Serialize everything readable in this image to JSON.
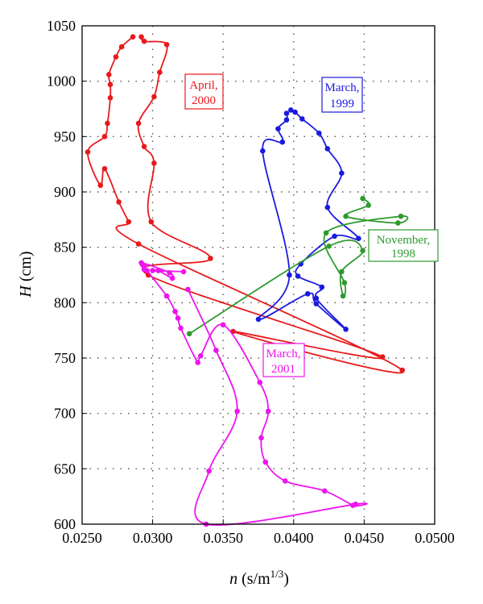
{
  "chart_data": {
    "type": "line",
    "xlabel": {
      "var": "n",
      "unit": "(s/m",
      "sup": "1/3",
      "close": ")"
    },
    "ylabel": {
      "var": "H",
      "unit": " (cm)"
    },
    "xlim": [
      0.025,
      0.05
    ],
    "ylim": [
      600,
      1050
    ],
    "xticks": [
      "0.0250",
      "0.0300",
      "0.0350",
      "0.0400",
      "0.0450",
      "0.0500"
    ],
    "yticks": [
      "600",
      "650",
      "700",
      "750",
      "800",
      "850",
      "900",
      "950",
      "1000",
      "1050"
    ],
    "grid": true,
    "series": [
      {
        "name": "April, 2000",
        "label_lines": [
          "April,",
          "2000"
        ],
        "color": "#e8191c",
        "points": [
          [
            0.0292,
            1040
          ],
          [
            0.0294,
            1036
          ],
          [
            0.031,
            1033
          ],
          [
            0.0305,
            1008
          ],
          [
            0.0301,
            986
          ],
          [
            0.029,
            962
          ],
          [
            0.0294,
            941
          ],
          [
            0.0301,
            926
          ],
          [
            0.0299,
            873
          ],
          [
            0.0341,
            840
          ],
          [
            0.0297,
            825
          ],
          [
            0.0463,
            751
          ],
          [
            0.0357,
            774
          ],
          [
            0.0477,
            739
          ],
          [
            0.029,
            853
          ],
          [
            0.0283,
            873
          ],
          [
            0.0276,
            891
          ],
          [
            0.0266,
            921
          ],
          [
            0.0263,
            906
          ],
          [
            0.0254,
            936
          ],
          [
            0.0266,
            950
          ],
          [
            0.0268,
            962
          ],
          [
            0.027,
            985
          ],
          [
            0.027,
            997
          ],
          [
            0.0269,
            1006
          ],
          [
            0.0274,
            1022
          ],
          [
            0.0278,
            1031
          ],
          [
            0.0286,
            1040
          ]
        ]
      },
      {
        "name": "March, 1999",
        "label_lines": [
          "March,",
          "1999"
        ],
        "color": "#1a1ae0",
        "points": [
          [
            0.0398,
            974
          ],
          [
            0.0401,
            972
          ],
          [
            0.0406,
            966
          ],
          [
            0.0418,
            953
          ],
          [
            0.0424,
            939
          ],
          [
            0.0434,
            917
          ],
          [
            0.0424,
            886
          ],
          [
            0.0446,
            858
          ],
          [
            0.0429,
            860
          ],
          [
            0.0405,
            835
          ],
          [
            0.0403,
            824
          ],
          [
            0.042,
            814
          ],
          [
            0.0416,
            804
          ],
          [
            0.0437,
            776
          ],
          [
            0.0416,
            799
          ],
          [
            0.041,
            808
          ],
          [
            0.0375,
            785
          ],
          [
            0.0397,
            825
          ],
          [
            0.0378,
            937
          ],
          [
            0.0392,
            945
          ],
          [
            0.0389,
            957
          ],
          [
            0.0395,
            965
          ],
          [
            0.0395,
            971
          ]
        ]
      },
      {
        "name": "November, 1998",
        "label_lines": [
          "November,",
          "1998"
        ],
        "color": "#2e9a2e",
        "points": [
          [
            0.0326,
            772
          ],
          [
            0.0425,
            851
          ],
          [
            0.0449,
            847
          ],
          [
            0.0434,
            828
          ],
          [
            0.0435,
            806
          ],
          [
            0.0436,
            818
          ],
          [
            0.0423,
            863
          ],
          [
            0.0476,
            878
          ],
          [
            0.0474,
            872
          ],
          [
            0.0437,
            878
          ],
          [
            0.0453,
            888
          ],
          [
            0.0449,
            894
          ]
        ]
      },
      {
        "name": "March, 2001",
        "label_lines": [
          "March,",
          "2001"
        ],
        "color": "#ee14ee",
        "points": [
          [
            0.0322,
            828
          ],
          [
            0.03,
            829
          ],
          [
            0.0304,
            829
          ],
          [
            0.0314,
            822
          ],
          [
            0.0312,
            827
          ],
          [
            0.0292,
            836
          ],
          [
            0.0294,
            830
          ],
          [
            0.0294,
            833
          ],
          [
            0.0296,
            829
          ],
          [
            0.031,
            806
          ],
          [
            0.0316,
            792
          ],
          [
            0.0318,
            786
          ],
          [
            0.032,
            777
          ],
          [
            0.0332,
            746
          ],
          [
            0.0334,
            752
          ],
          [
            0.035,
            780
          ],
          [
            0.0376,
            728
          ],
          [
            0.0382,
            702
          ],
          [
            0.0377,
            678
          ],
          [
            0.038,
            656
          ],
          [
            0.0394,
            639
          ],
          [
            0.0422,
            630
          ],
          [
            0.0442,
            617
          ],
          [
            0.0444,
            618
          ],
          [
            0.0338,
            600
          ],
          [
            0.034,
            648
          ],
          [
            0.036,
            702
          ],
          [
            0.0345,
            757
          ],
          [
            0.0325,
            812
          ]
        ]
      }
    ]
  }
}
